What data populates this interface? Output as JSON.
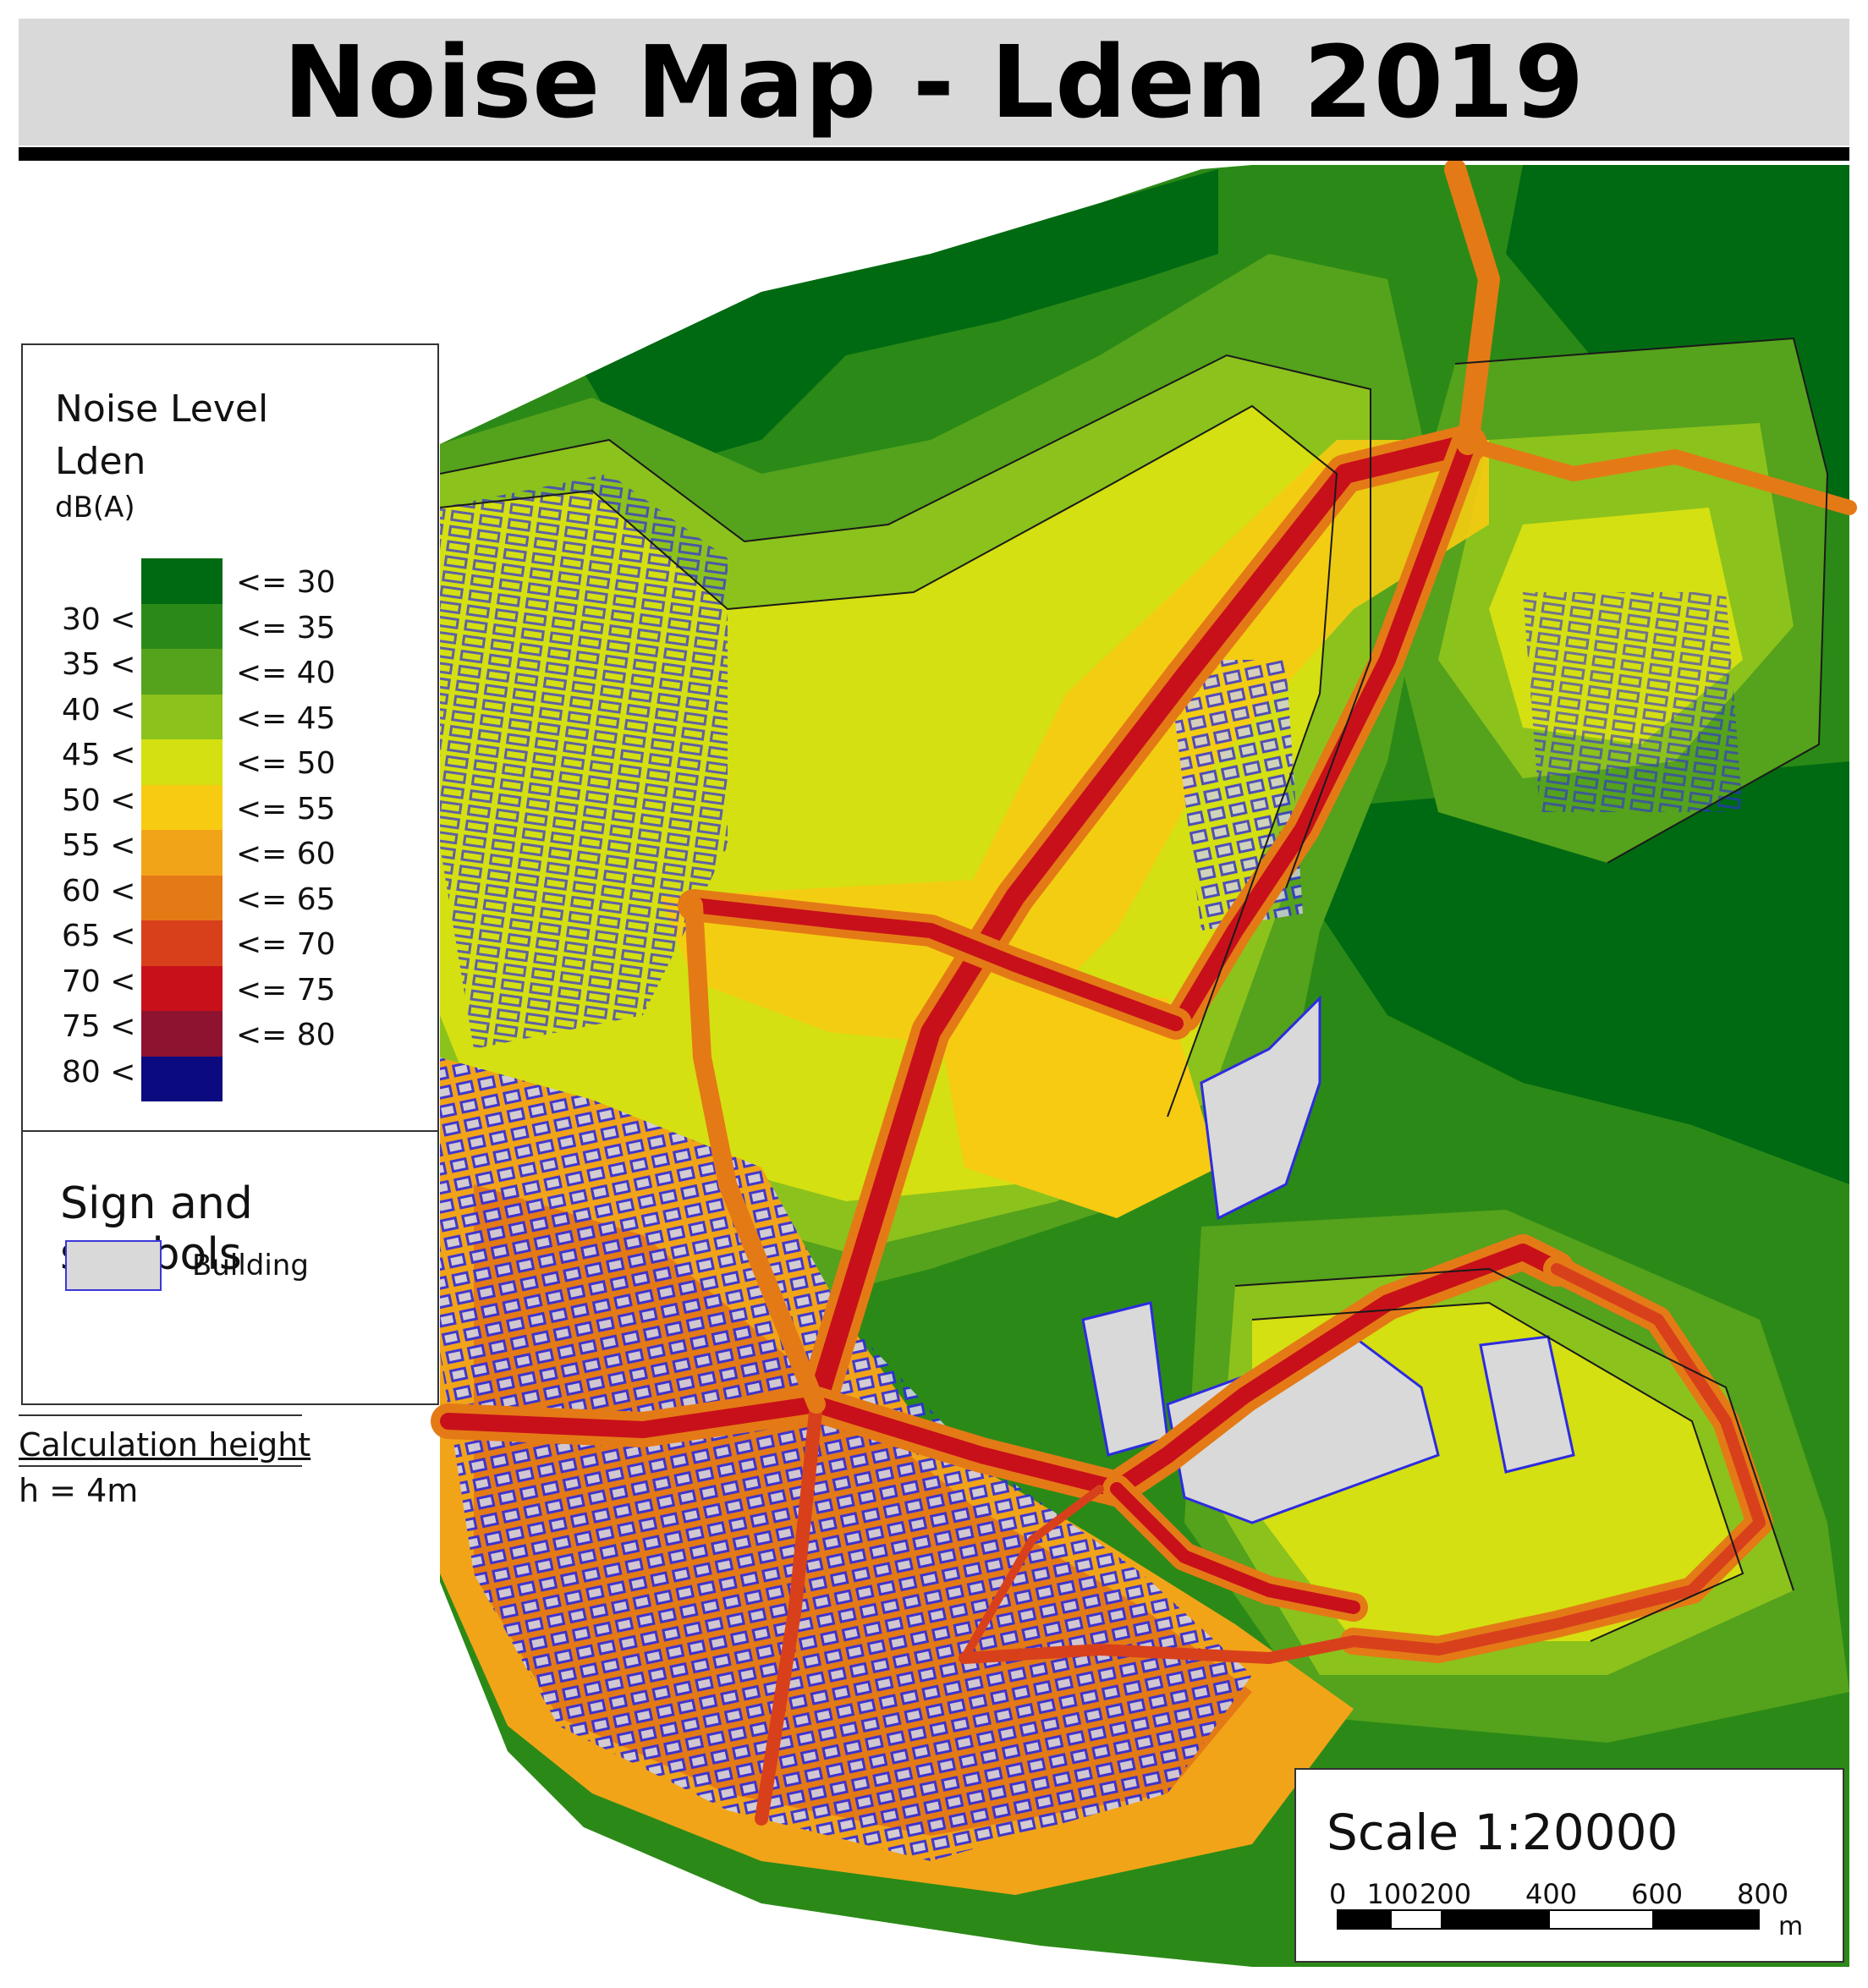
{
  "title": "Noise Map - Lden 2019",
  "legend": {
    "heading_line1": "Noise Level",
    "heading_line2": "Lden",
    "unit": "dB(A)",
    "classes": [
      {
        "left": "",
        "right": "<= 30",
        "color": "#006a12"
      },
      {
        "left": "30 <",
        "right": "<= 35",
        "color": "#2b8a17"
      },
      {
        "left": "35 <",
        "right": "<= 40",
        "color": "#55a21c"
      },
      {
        "left": "40 <",
        "right": "<= 45",
        "color": "#8cc21c"
      },
      {
        "left": "45 <",
        "right": "<= 50",
        "color": "#d4e011"
      },
      {
        "left": "50 <",
        "right": "<= 55",
        "color": "#f6cb12"
      },
      {
        "left": "55 <",
        "right": "<= 60",
        "color": "#f2a418"
      },
      {
        "left": "60 <",
        "right": "<= 65",
        "color": "#e47a16"
      },
      {
        "left": "65 <",
        "right": "<= 70",
        "color": "#d8401c"
      },
      {
        "left": "70 <",
        "right": "<= 75",
        "color": "#c8101a"
      },
      {
        "left": "75 <",
        "right": "<= 80",
        "color": "#8e1330"
      },
      {
        "left": "80 <",
        "right": "",
        "color": "#0b0a7e"
      }
    ],
    "symbols_title": "Sign and symbols",
    "building_label": "Building",
    "building_fill": "#d9d9d9",
    "building_outline": "#3a37d8"
  },
  "calculation": {
    "title": "Calculation height",
    "value": "h = 4m"
  },
  "scale": {
    "title": "Scale 1:20000",
    "ticks": [
      "0",
      "100",
      "200",
      "400",
      "600",
      "800"
    ],
    "unit": "m"
  }
}
